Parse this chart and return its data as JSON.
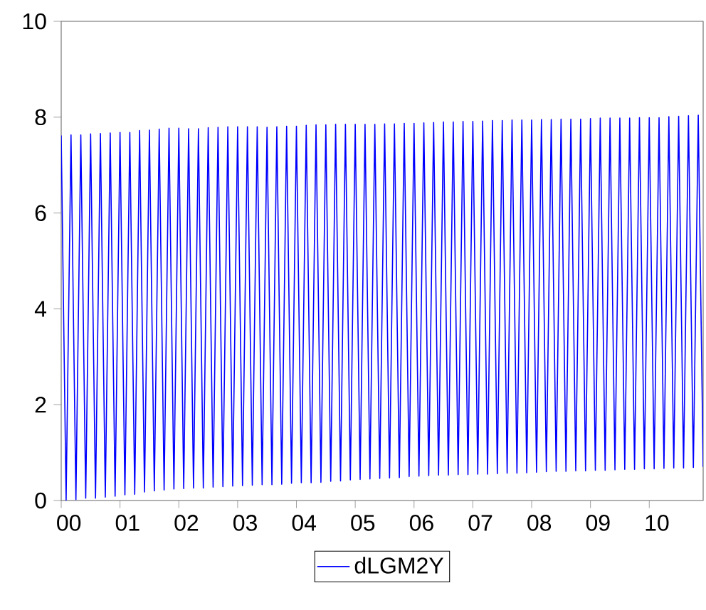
{
  "chart_data": {
    "type": "line",
    "x": [
      "2000-01",
      "2000-02",
      "2000-03",
      "2000-04",
      "2000-05",
      "2000-06",
      "2000-07",
      "2000-08",
      "2000-09",
      "2000-10",
      "2000-11",
      "2000-12",
      "2001-01",
      "2001-02",
      "2001-03",
      "2001-04",
      "2001-05",
      "2001-06",
      "2001-07",
      "2001-08",
      "2001-09",
      "2001-10",
      "2001-11",
      "2001-12",
      "2002-01",
      "2002-02",
      "2002-03",
      "2002-04",
      "2002-05",
      "2002-06",
      "2002-07",
      "2002-08",
      "2002-09",
      "2002-10",
      "2002-11",
      "2002-12",
      "2003-01",
      "2003-02",
      "2003-03",
      "2003-04",
      "2003-05",
      "2003-06",
      "2003-07",
      "2003-08",
      "2003-09",
      "2003-10",
      "2003-11",
      "2003-12",
      "2004-01",
      "2004-02",
      "2004-03",
      "2004-04",
      "2004-05",
      "2004-06",
      "2004-07",
      "2004-08",
      "2004-09",
      "2004-10",
      "2004-11",
      "2004-12",
      "2005-01",
      "2005-02",
      "2005-03",
      "2005-04",
      "2005-05",
      "2005-06",
      "2005-07",
      "2005-08",
      "2005-09",
      "2005-10",
      "2005-11",
      "2005-12",
      "2006-01",
      "2006-02",
      "2006-03",
      "2006-04",
      "2006-05",
      "2006-06",
      "2006-07",
      "2006-08",
      "2006-09",
      "2006-10",
      "2006-11",
      "2006-12",
      "2007-01",
      "2007-02",
      "2007-03",
      "2007-04",
      "2007-05",
      "2007-06",
      "2007-07",
      "2007-08",
      "2007-09",
      "2007-10",
      "2007-11",
      "2007-12",
      "2008-01",
      "2008-02",
      "2008-03",
      "2008-04",
      "2008-05",
      "2008-06",
      "2008-07",
      "2008-08",
      "2008-09",
      "2008-10",
      "2008-11",
      "2008-12",
      "2009-01",
      "2009-02",
      "2009-03",
      "2009-04",
      "2009-05",
      "2009-06",
      "2009-07",
      "2009-08",
      "2009-09",
      "2009-10",
      "2009-11",
      "2009-12",
      "2010-01",
      "2010-02",
      "2010-03",
      "2010-04",
      "2010-05",
      "2010-06",
      "2010-07",
      "2010-08",
      "2010-09",
      "2010-10",
      "2010-11",
      "2010-12"
    ],
    "series": [
      {
        "name": "dLGM2Y",
        "color": "#0000ff",
        "values": [
          7.62,
          0.0,
          7.63,
          0.02,
          7.63,
          0.05,
          7.65,
          0.05,
          7.66,
          0.07,
          7.67,
          0.09,
          7.68,
          0.12,
          7.68,
          0.13,
          7.72,
          0.18,
          7.73,
          0.2,
          7.75,
          0.22,
          7.77,
          0.24,
          7.77,
          0.25,
          7.76,
          0.26,
          7.76,
          0.26,
          7.78,
          0.28,
          7.79,
          0.29,
          7.8,
          0.3,
          7.8,
          0.31,
          7.8,
          0.32,
          7.8,
          0.33,
          7.79,
          0.33,
          7.8,
          0.34,
          7.81,
          0.36,
          7.81,
          0.37,
          7.83,
          0.37,
          7.84,
          0.38,
          7.84,
          0.4,
          7.85,
          0.41,
          7.85,
          0.43,
          7.85,
          0.44,
          7.85,
          0.45,
          7.85,
          0.46,
          7.86,
          0.47,
          7.86,
          0.48,
          7.87,
          0.5,
          7.87,
          0.51,
          7.88,
          0.52,
          7.89,
          0.53,
          7.9,
          0.53,
          7.9,
          0.54,
          7.91,
          0.54,
          7.91,
          0.55,
          7.92,
          0.55,
          7.93,
          0.56,
          7.93,
          0.57,
          7.94,
          0.57,
          7.94,
          0.58,
          7.94,
          0.59,
          7.95,
          0.6,
          7.95,
          0.61,
          7.96,
          0.61,
          7.96,
          0.62,
          7.96,
          0.62,
          7.97,
          0.63,
          7.98,
          0.63,
          7.98,
          0.64,
          7.98,
          0.65,
          7.98,
          0.65,
          7.99,
          0.66,
          7.99,
          0.66,
          7.99,
          0.67,
          8.01,
          0.68,
          8.02,
          0.68,
          8.03,
          0.69,
          8.04,
          0.7
        ]
      }
    ],
    "xlim": [
      "2000-01",
      "2010-12"
    ],
    "xticks": [
      {
        "value": "2000-01",
        "label": "00"
      },
      {
        "value": "2001-01",
        "label": "01"
      },
      {
        "value": "2002-01",
        "label": "02"
      },
      {
        "value": "2003-01",
        "label": "03"
      },
      {
        "value": "2004-01",
        "label": "04"
      },
      {
        "value": "2005-01",
        "label": "05"
      },
      {
        "value": "2006-01",
        "label": "06"
      },
      {
        "value": "2007-01",
        "label": "07"
      },
      {
        "value": "2008-01",
        "label": "08"
      },
      {
        "value": "2009-01",
        "label": "09"
      },
      {
        "value": "2010-01",
        "label": "10"
      }
    ],
    "ylim": [
      0,
      10
    ],
    "yticks": [
      0,
      2,
      4,
      6,
      8,
      10
    ],
    "grid": false,
    "legend": "bottom",
    "marker": "none",
    "line_style": "solid"
  }
}
